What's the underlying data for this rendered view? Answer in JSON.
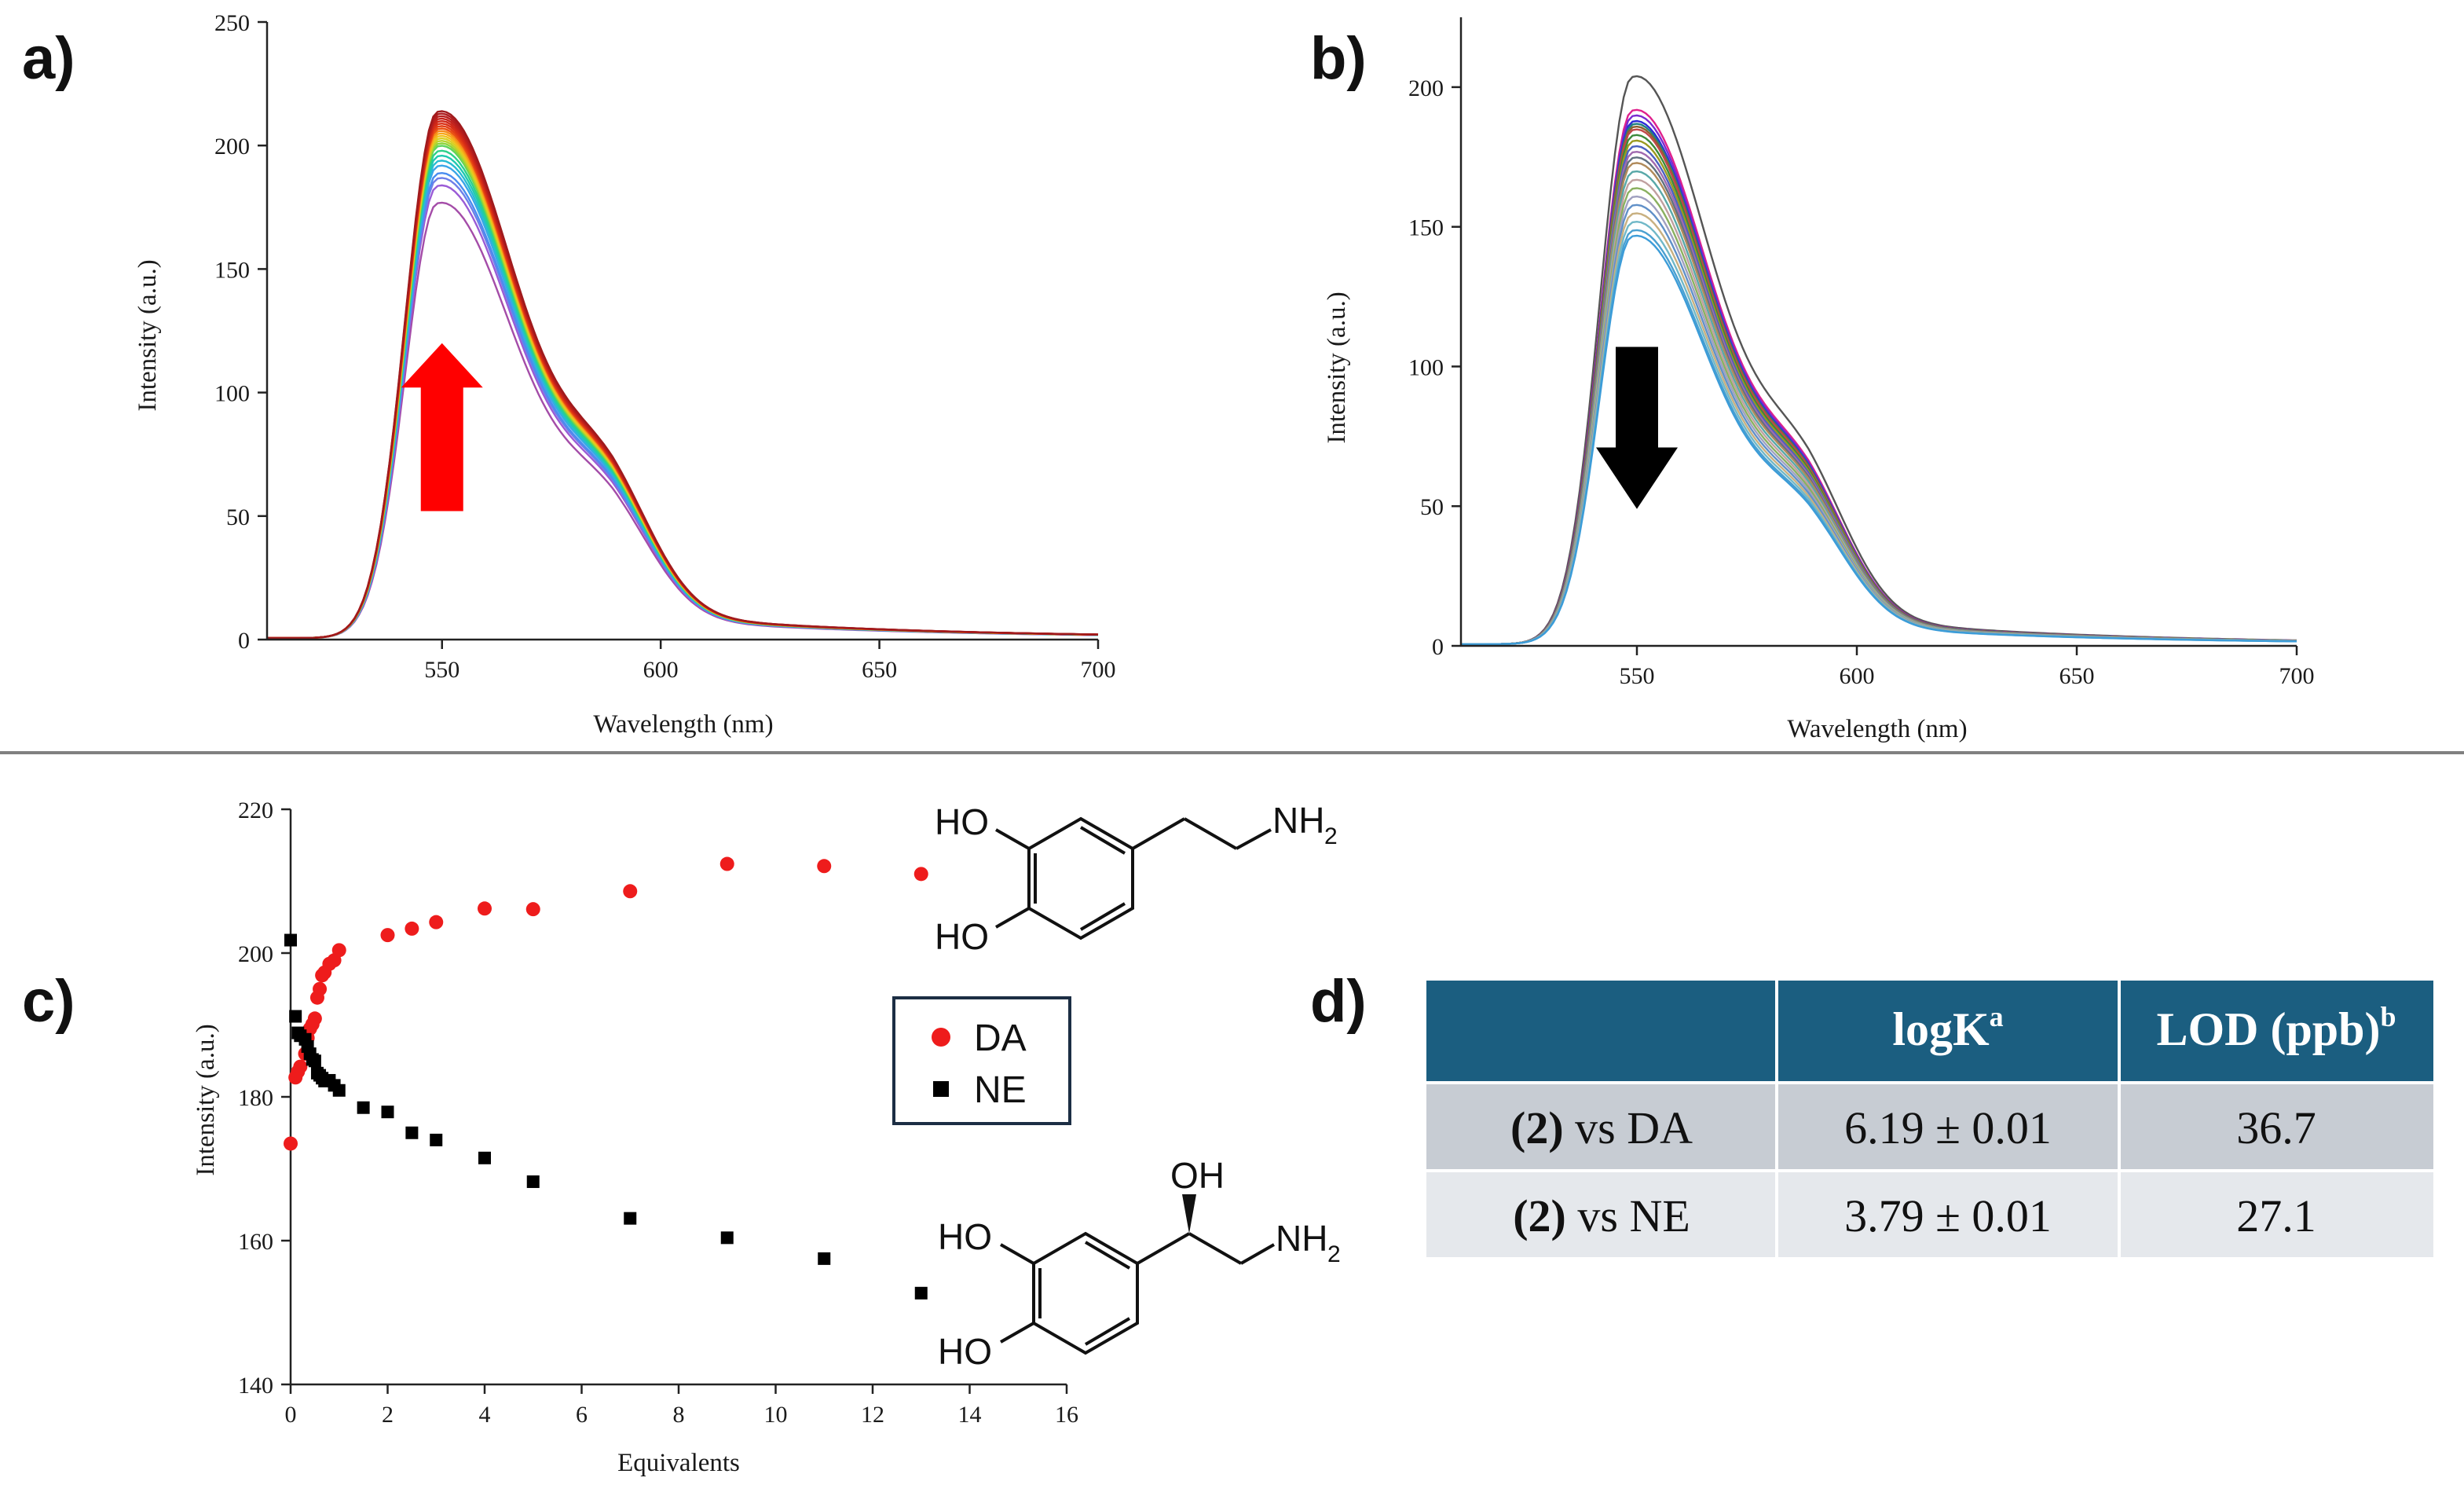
{
  "panels": {
    "a": "a)",
    "b": "b)",
    "c": "c)",
    "d": "d)"
  },
  "chart_data": [
    {
      "id": "a",
      "type": "line",
      "xlabel": "Wavelength (nm)",
      "ylabel": "Intensity (a.u.)",
      "xlim": [
        510,
        700
      ],
      "ylim": [
        0,
        250
      ],
      "xticks": [
        550,
        600,
        650,
        700
      ],
      "yticks": [
        0,
        50,
        100,
        150,
        200,
        250
      ],
      "peak_wavelength": 549,
      "peaks": [
        176,
        183,
        186,
        188,
        191,
        193,
        195,
        197,
        199,
        200,
        201,
        202,
        203,
        204,
        205,
        206,
        206,
        207,
        208,
        209,
        210,
        211,
        212,
        213
      ],
      "colors": [
        "#a44ca8",
        "#9a5bd6",
        "#6e7fe8",
        "#4a8df0",
        "#3aa6e8",
        "#27bcd2",
        "#20c9b0",
        "#2cd08a",
        "#5fd45b",
        "#8ed43c",
        "#b7d42e",
        "#d9cf24",
        "#f0c11c",
        "#f7a71a",
        "#f68a18",
        "#f26c16",
        "#ea5214",
        "#e23e14",
        "#d93016",
        "#d02818",
        "#c4221a",
        "#b81e1c",
        "#ae1c1e",
        "#a01a1c"
      ],
      "annotation": {
        "type": "arrow",
        "direction": "up",
        "color": "#ff0000"
      }
    },
    {
      "id": "b",
      "type": "line",
      "xlabel": "Wavelength (nm)",
      "ylabel": "Intensity (a.u.)",
      "xlim": [
        510,
        700
      ],
      "ylim": [
        0,
        225
      ],
      "xticks": [
        550,
        600,
        650,
        700
      ],
      "yticks": [
        0,
        50,
        100,
        150,
        200
      ],
      "peak_wavelength": 549,
      "peaks": [
        203,
        191,
        189,
        187,
        186,
        185,
        184,
        182,
        180,
        178,
        176,
        174,
        172,
        169,
        166,
        163,
        160,
        157,
        154,
        151,
        148,
        146
      ],
      "colors": [
        "#555555",
        "#e0208c",
        "#7a2ad0",
        "#2a2ad8",
        "#208080",
        "#8a6030",
        "#c04848",
        "#3a8a3a",
        "#9a9a20",
        "#4a60c0",
        "#a06ab0",
        "#607080",
        "#b08a5a",
        "#58a8a8",
        "#c0a0a0",
        "#8ab060",
        "#a0a0c0",
        "#6090c8",
        "#c8b080",
        "#70b8c8",
        "#4aa0d0",
        "#3c9cd8"
      ],
      "annotation": {
        "type": "arrow",
        "direction": "down",
        "color": "#000000"
      }
    },
    {
      "id": "c",
      "type": "scatter",
      "xlabel": "Equivalents",
      "ylabel": "Intensity (a.u.)",
      "xlim": [
        0,
        16
      ],
      "ylim": [
        140,
        220
      ],
      "xticks": [
        0,
        2,
        4,
        6,
        8,
        10,
        12,
        14,
        16
      ],
      "yticks": [
        140,
        160,
        180,
        200,
        220
      ],
      "series": [
        {
          "name": "DA",
          "color": "#ee1c1c",
          "marker": "circle",
          "x": [
            0,
            0.1,
            0.15,
            0.2,
            0.3,
            0.35,
            0.4,
            0.45,
            0.5,
            0.55,
            0.6,
            0.65,
            0.7,
            0.8,
            0.9,
            1.0,
            2.0,
            2.5,
            3.0,
            4.0,
            5.0,
            7.0,
            9.0,
            11.0,
            13.0
          ],
          "y": [
            173.5,
            182.7,
            183.5,
            184.2,
            186.0,
            188.2,
            189.5,
            190.1,
            190.9,
            193.8,
            195.0,
            196.9,
            197.3,
            198.5,
            199.0,
            200.4,
            202.5,
            203.4,
            204.3,
            206.2,
            206.1,
            208.6,
            212.4,
            212.1,
            211.0
          ]
        },
        {
          "name": "NE",
          "color": "#000000",
          "marker": "square",
          "x": [
            0,
            0.1,
            0.15,
            0.2,
            0.3,
            0.35,
            0.4,
            0.45,
            0.5,
            0.55,
            0.6,
            0.65,
            0.7,
            0.8,
            0.9,
            1.0,
            1.5,
            2.0,
            2.5,
            3.0,
            4.0,
            5.0,
            7.0,
            9.0,
            11.0,
            13.0
          ],
          "y": [
            201.8,
            191.2,
            188.9,
            188.5,
            188.0,
            187.0,
            186.0,
            185.2,
            185.0,
            183.3,
            183.0,
            182.6,
            182.2,
            182.3,
            181.6,
            180.9,
            178.5,
            177.9,
            175.0,
            174.0,
            171.5,
            168.2,
            163.1,
            160.4,
            157.5,
            152.7
          ]
        }
      ]
    }
  ],
  "legend": {
    "items": [
      {
        "label": "DA",
        "color": "#ee1c1c",
        "marker": "circle"
      },
      {
        "label": "NE",
        "color": "#000000",
        "marker": "square"
      }
    ]
  },
  "chem": {
    "da": {
      "ho_top": "HO",
      "ho_bottom": "HO",
      "amine": "NH",
      "amine_sub": "2"
    },
    "ne": {
      "ho_top": "HO",
      "ho_bottom": "HO",
      "oh": "OH",
      "amine": "NH",
      "amine_sub": "2"
    }
  },
  "table": {
    "header_bg": "#1b5e80",
    "row1_bg": "#c7ccd3",
    "row2_bg": "#e5e8ec",
    "headers": [
      {
        "main": "",
        "sup": ""
      },
      {
        "main": "logK",
        "sup": "a"
      },
      {
        "main": "LOD (ppb)",
        "sup": "b"
      }
    ],
    "rows": [
      {
        "compound": "(2)",
        "vs": "vs DA",
        "logk": "6.19 ± 0.01",
        "lod": "36.7"
      },
      {
        "compound": "(2)",
        "vs": "vs NE",
        "logk": "3.79 ± 0.01",
        "lod": "27.1"
      }
    ]
  }
}
